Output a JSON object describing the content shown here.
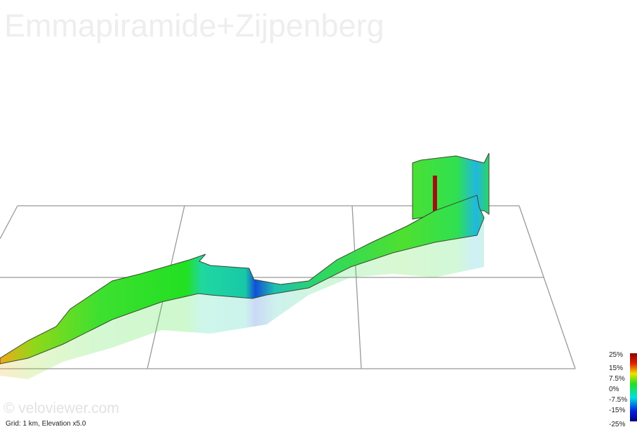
{
  "header": {
    "title": "Emmapiramide+Zijpenberg"
  },
  "watermark": "© veloviewer.com",
  "footnote": "Grid: 1 km, Elevation x5.0",
  "legend": {
    "labels": [
      "25%",
      "15%",
      "7.5%",
      "0%",
      "-7.5%",
      "-15%",
      "-25%"
    ]
  }
}
